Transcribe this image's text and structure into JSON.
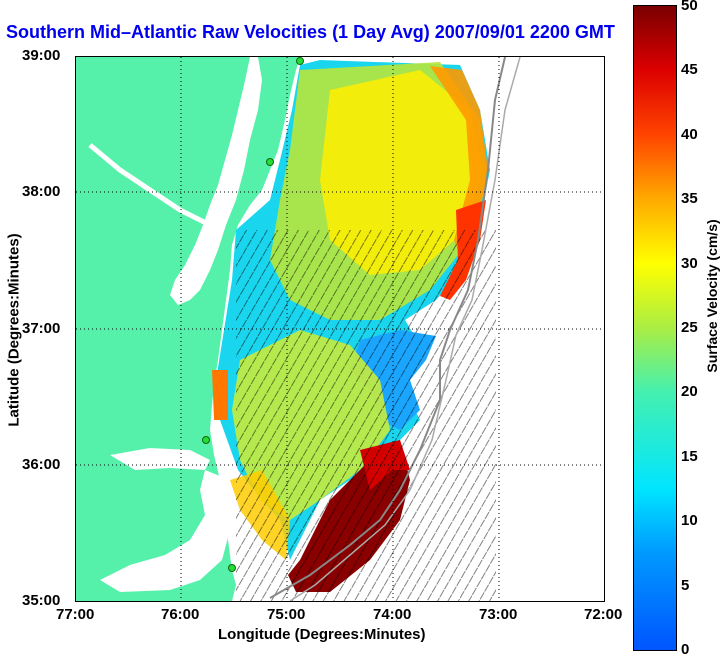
{
  "title": "Southern Mid–Atlantic Raw Velocities (1 Day Avg) 2007/09/01 2200 GMT",
  "x_axis": {
    "label": "Longitude (Degrees:Minutes)",
    "ticks": [
      "77:00",
      "76:00",
      "75:00",
      "74:00",
      "73:00",
      "72:00"
    ]
  },
  "y_axis": {
    "label": "Latitude (Degrees:Minutes)",
    "ticks": [
      "39:00",
      "38:00",
      "37:00",
      "36:00",
      "35:00"
    ]
  },
  "colorbar": {
    "label": "Surface Velocity (cm/s)",
    "ticks": [
      "50",
      "45",
      "40",
      "35",
      "30",
      "25",
      "20",
      "15",
      "10",
      "5",
      "0"
    ],
    "range": [
      0,
      50
    ]
  },
  "colors": {
    "land": "#55f0aa",
    "title": "#0000ee",
    "station": "#22dd33"
  }
}
